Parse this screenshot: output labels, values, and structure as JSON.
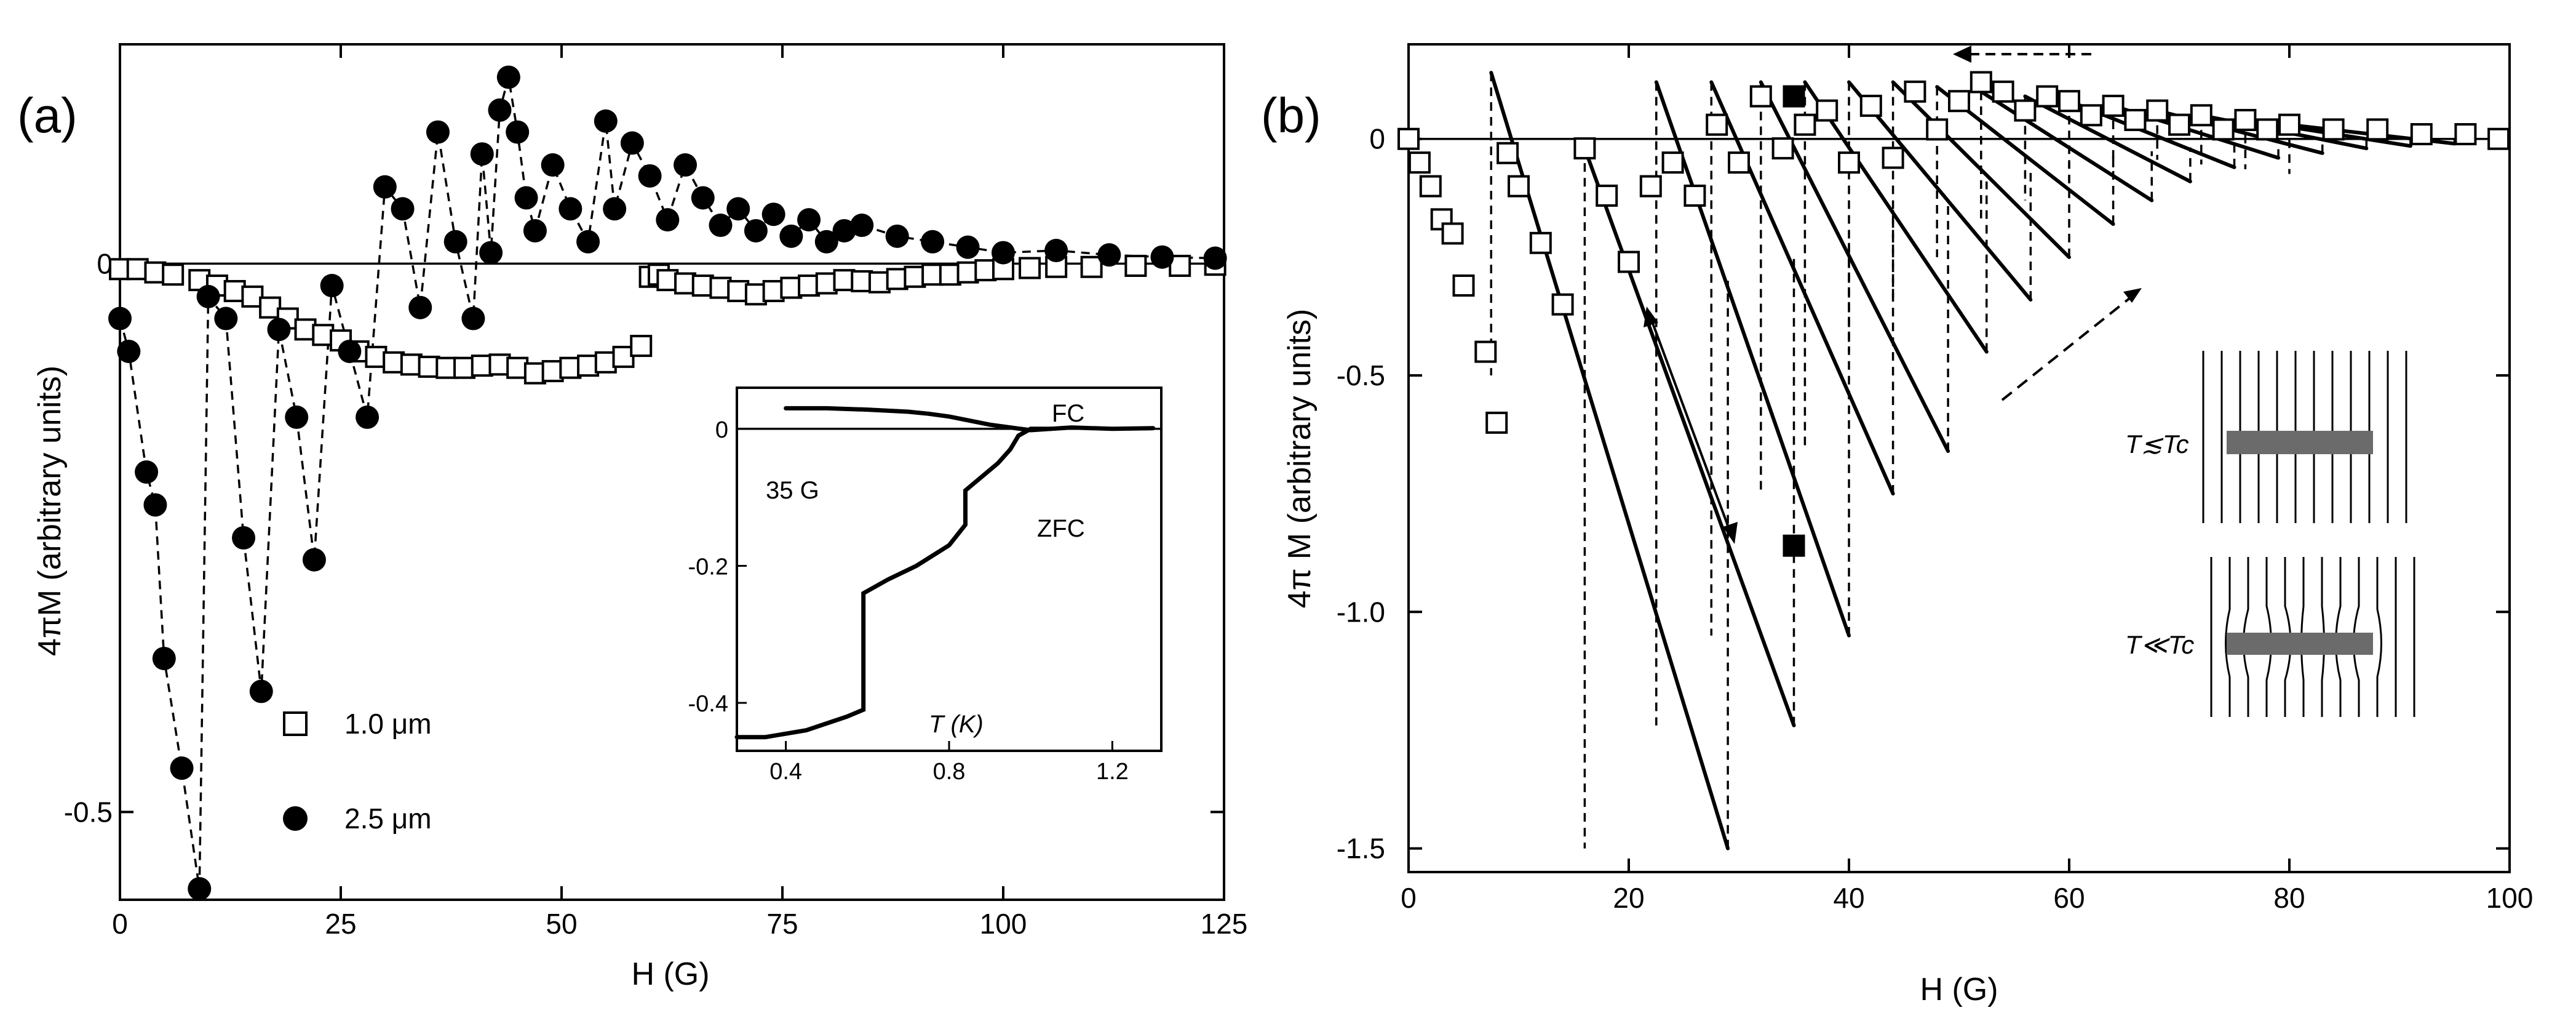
{
  "panels": {
    "a": {
      "label": "(a)"
    },
    "b": {
      "label": "(b)"
    }
  },
  "chart_data": [
    {
      "type": "scatter",
      "panel": "(a)",
      "title": "",
      "xlabel": "H (G)",
      "ylabel": "4πM (arbitrary units)",
      "xlim": [
        0,
        125
      ],
      "ylim": [
        -0.58,
        0.2
      ],
      "xticks": [
        "0",
        "25",
        "50",
        "75",
        "100",
        "125"
      ],
      "yticks": [
        "0",
        "-0.5"
      ],
      "legend": {
        "position": "bottom-left",
        "entries": [
          "1.0 μm",
          "2.5 μm"
        ]
      },
      "series": [
        {
          "name": "1.0 μm",
          "marker": "open-square",
          "x": [
            0,
            2,
            4,
            6,
            9,
            11,
            13,
            15,
            17,
            19,
            21,
            23,
            25,
            27,
            29,
            31,
            33,
            35,
            37,
            39,
            41,
            43,
            45,
            47,
            49,
            51,
            53,
            55,
            57,
            59,
            60,
            61,
            62,
            64,
            66,
            68,
            70,
            72,
            74,
            76,
            78,
            80,
            82,
            84,
            86,
            88,
            90,
            92,
            94,
            96,
            98,
            100,
            103,
            106,
            110,
            115,
            120,
            124
          ],
          "y": [
            -0.005,
            -0.005,
            -0.008,
            -0.01,
            -0.015,
            -0.02,
            -0.025,
            -0.03,
            -0.04,
            -0.05,
            -0.06,
            -0.065,
            -0.07,
            -0.08,
            -0.085,
            -0.09,
            -0.092,
            -0.094,
            -0.095,
            -0.095,
            -0.093,
            -0.092,
            -0.095,
            -0.1,
            -0.098,
            -0.095,
            -0.093,
            -0.09,
            -0.085,
            -0.075,
            -0.012,
            -0.01,
            -0.015,
            -0.018,
            -0.02,
            -0.022,
            -0.025,
            -0.028,
            -0.025,
            -0.022,
            -0.02,
            -0.018,
            -0.015,
            -0.016,
            -0.017,
            -0.014,
            -0.012,
            -0.01,
            -0.01,
            -0.008,
            -0.006,
            -0.005,
            -0.004,
            -0.003,
            -0.003,
            -0.002,
            -0.002,
            -0.001
          ]
        },
        {
          "name": "2.5 μm",
          "marker": "filled-circle",
          "x": [
            0,
            1,
            3,
            4,
            5,
            7,
            9,
            10,
            12,
            14,
            16,
            18,
            20,
            22,
            24,
            26,
            28,
            30,
            32,
            34,
            36,
            38,
            40,
            41,
            42,
            43,
            44,
            45,
            46,
            47,
            49,
            51,
            53,
            55,
            56,
            58,
            60,
            62,
            64,
            66,
            68,
            70,
            72,
            74,
            76,
            78,
            80,
            82,
            84,
            88,
            92,
            96,
            100,
            106,
            112,
            118,
            124
          ],
          "y": [
            -0.05,
            -0.08,
            -0.19,
            -0.22,
            -0.36,
            -0.46,
            -0.57,
            -0.03,
            -0.05,
            -0.25,
            -0.39,
            -0.06,
            -0.14,
            -0.27,
            -0.02,
            -0.08,
            -0.14,
            0.07,
            0.05,
            -0.04,
            0.12,
            0.02,
            -0.05,
            0.1,
            0.01,
            0.14,
            0.17,
            0.12,
            0.06,
            0.03,
            0.09,
            0.05,
            0.02,
            0.13,
            0.05,
            0.11,
            0.08,
            0.04,
            0.09,
            0.06,
            0.035,
            0.05,
            0.03,
            0.045,
            0.025,
            0.04,
            0.02,
            0.03,
            0.035,
            0.025,
            0.02,
            0.015,
            0.01,
            0.012,
            0.008,
            0.006,
            0.005
          ]
        }
      ],
      "inset": {
        "type": "line",
        "xlabel": "T (K)",
        "xticks": [
          "0.4",
          "0.8",
          "1.2"
        ],
        "yticks": [
          "0",
          "-0.2",
          "-0.4"
        ],
        "xlim": [
          0.28,
          1.32
        ],
        "ylim": [
          -0.47,
          0.06
        ],
        "field_label": "35 G",
        "curve_labels": {
          "fc": "FC",
          "zfc": "ZFC"
        },
        "fc": {
          "x": [
            0.4,
            0.5,
            0.6,
            0.7,
            0.75,
            0.8,
            0.85,
            0.9,
            0.95,
            1.0,
            1.05,
            1.1,
            1.2,
            1.3
          ],
          "y": [
            0.03,
            0.03,
            0.028,
            0.025,
            0.022,
            0.018,
            0.012,
            0.006,
            0.002,
            -0.002,
            0.0,
            0.002,
            0.0,
            0.001
          ]
        },
        "zfc": {
          "x": [
            0.28,
            0.35,
            0.45,
            0.55,
            0.59,
            0.59,
            0.65,
            0.72,
            0.8,
            0.84,
            0.84,
            0.88,
            0.92,
            0.95,
            0.97,
            1.0,
            1.05
          ],
          "y": [
            -0.45,
            -0.45,
            -0.44,
            -0.42,
            -0.41,
            -0.24,
            -0.22,
            -0.2,
            -0.17,
            -0.14,
            -0.09,
            -0.07,
            -0.05,
            -0.03,
            -0.01,
            0.0,
            0.0
          ]
        }
      }
    },
    {
      "type": "line",
      "panel": "(b)",
      "title": "",
      "xlabel": "H (G)",
      "ylabel": "4π M (arbitrary units)",
      "xlim": [
        0,
        100
      ],
      "ylim": [
        -1.55,
        0.2
      ],
      "xticks": [
        "0",
        "20",
        "40",
        "60",
        "80",
        "100"
      ],
      "yticks": [
        "0",
        "-0.5",
        "-1.0",
        "-1.5"
      ],
      "series": [
        {
          "name": "squares",
          "marker": "open-square",
          "x": [
            0,
            1,
            2,
            3,
            4,
            5,
            7,
            8,
            9,
            10,
            12,
            14,
            16,
            18,
            20,
            22,
            24,
            26,
            28,
            30,
            32,
            34,
            36,
            38,
            40,
            42,
            44,
            46,
            48,
            50,
            52,
            54,
            56,
            58,
            60,
            62,
            64,
            66,
            68,
            70,
            72,
            74,
            76,
            78,
            80,
            84,
            88,
            92,
            96,
            99
          ],
          "y": [
            0,
            -0.05,
            -0.1,
            -0.17,
            -0.2,
            -0.31,
            -0.45,
            -0.6,
            -0.03,
            -0.1,
            -0.22,
            -0.35,
            -0.02,
            -0.12,
            -0.26,
            -0.1,
            -0.05,
            -0.12,
            0.03,
            -0.05,
            0.09,
            -0.02,
            0.03,
            0.06,
            -0.05,
            0.07,
            -0.04,
            0.1,
            0.02,
            0.08,
            0.12,
            0.1,
            0.06,
            0.09,
            0.08,
            0.05,
            0.07,
            0.04,
            0.06,
            0.03,
            0.05,
            0.02,
            0.04,
            0.02,
            0.03,
            0.02,
            0.02,
            0.01,
            0.01,
            0.0
          ]
        }
      ],
      "filled_markers": {
        "x": [
          35,
          35
        ],
        "y": [
          0.09,
          -0.86
        ]
      },
      "branches": [
        {
          "x": [
            7.5,
            29
          ],
          "y": [
            0.14,
            -1.5
          ]
        },
        {
          "x": [
            16,
            35
          ],
          "y": [
            -0.02,
            -1.24
          ]
        },
        {
          "x": [
            22.5,
            40
          ],
          "y": [
            0.12,
            -1.05
          ]
        },
        {
          "x": [
            27.5,
            44
          ],
          "y": [
            0.12,
            -0.75
          ]
        },
        {
          "x": [
            32,
            49
          ],
          "y": [
            0.12,
            -0.66
          ]
        },
        {
          "x": [
            36,
            52.5
          ],
          "y": [
            0.12,
            -0.45
          ]
        },
        {
          "x": [
            40,
            56.5
          ],
          "y": [
            0.12,
            -0.34
          ]
        },
        {
          "x": [
            44,
            60
          ],
          "y": [
            0.12,
            -0.25
          ]
        },
        {
          "x": [
            48,
            64
          ],
          "y": [
            0.11,
            -0.18
          ]
        },
        {
          "x": [
            52,
            67.5
          ],
          "y": [
            0.1,
            -0.13
          ]
        },
        {
          "x": [
            56,
            71
          ],
          "y": [
            0.09,
            -0.09
          ]
        },
        {
          "x": [
            60,
            75
          ],
          "y": [
            0.08,
            -0.06
          ]
        },
        {
          "x": [
            64,
            79
          ],
          "y": [
            0.07,
            -0.04
          ]
        },
        {
          "x": [
            68,
            83
          ],
          "y": [
            0.06,
            -0.03
          ]
        },
        {
          "x": [
            72,
            87
          ],
          "y": [
            0.05,
            -0.02
          ]
        },
        {
          "x": [
            76,
            91
          ],
          "y": [
            0.04,
            -0.015
          ]
        },
        {
          "x": [
            80,
            95
          ],
          "y": [
            0.03,
            -0.01
          ]
        }
      ],
      "schematic_labels": {
        "top": "T≲Tc",
        "bottom": "T≪Tc"
      }
    }
  ]
}
